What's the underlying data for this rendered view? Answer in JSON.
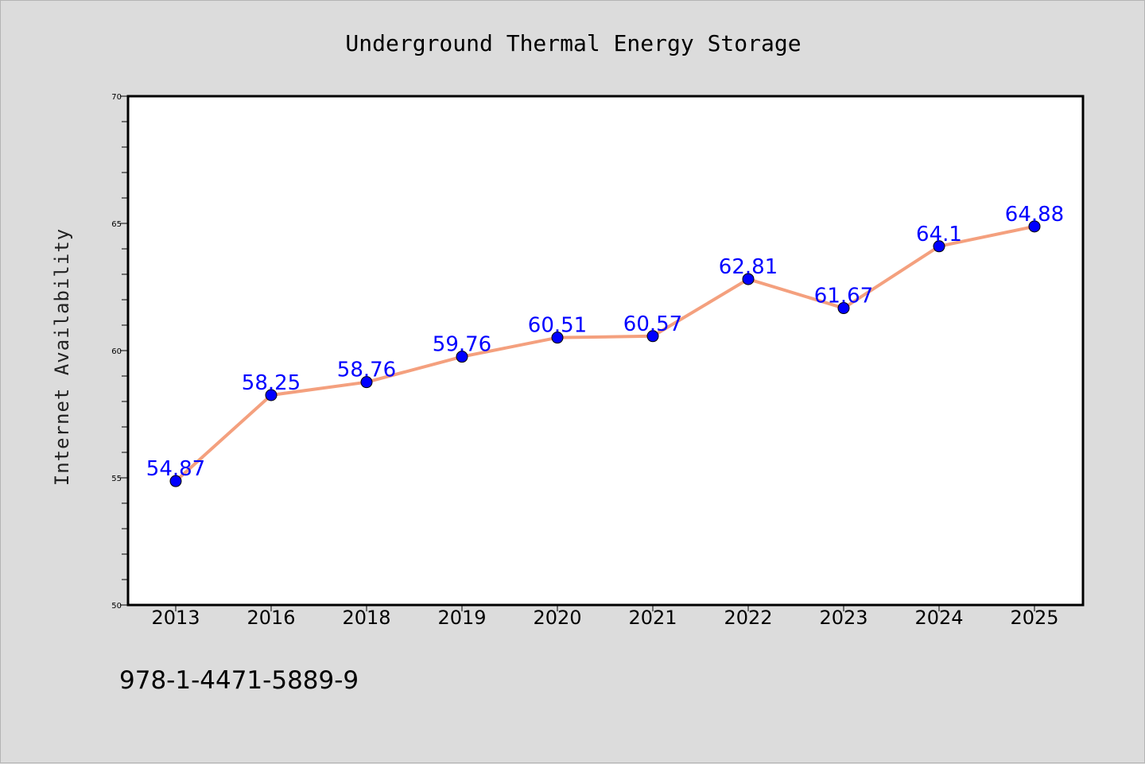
{
  "chart_data": {
    "type": "line",
    "title": "Underground Thermal Energy Storage",
    "xlabel": "",
    "ylabel": "Internet Availability",
    "categories": [
      "2013",
      "2016",
      "2018",
      "2019",
      "2020",
      "2021",
      "2022",
      "2023",
      "2024",
      "2025"
    ],
    "series": [
      {
        "values": [
          54.87,
          58.25,
          58.76,
          59.76,
          60.51,
          60.57,
          62.81,
          61.67,
          64.1,
          64.88
        ]
      }
    ],
    "data_labels": [
      "54.87",
      "58.25",
      "58.76",
      "59.76",
      "60.51",
      "60.57",
      "62.81",
      "61.67",
      "64.1",
      "64.88"
    ],
    "ylim": [
      50,
      70
    ],
    "yticks": [
      50,
      55,
      60,
      65,
      70
    ],
    "grid": false,
    "line_color": "#f4a07e",
    "marker_color": "#0000ff",
    "label_color": "#0000ff",
    "background_color": "#dcdcdc",
    "plot_background": "#ffffff"
  },
  "footnote": "978-1-4471-5889-9"
}
